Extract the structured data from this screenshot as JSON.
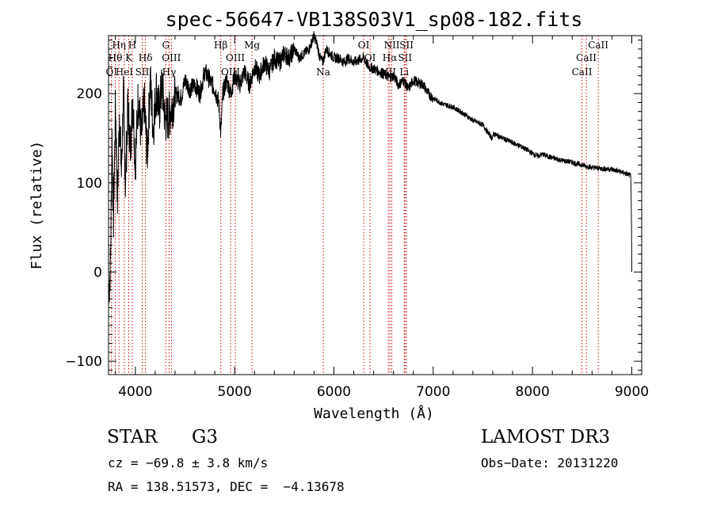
{
  "chart_data": {
    "type": "line",
    "title": "spec-56647-VB138S03V1_sp08-182.fits",
    "xlabel": "Wavelength (Å)",
    "ylabel": "Flux (relative)",
    "xlim": [
      3730,
      9100
    ],
    "ylim": [
      -115,
      265
    ],
    "x_ticks": [
      4000,
      5000,
      6000,
      7000,
      8000,
      9000
    ],
    "y_ticks": [
      -100,
      0,
      100,
      200
    ],
    "x_tick_labels": [
      "4000",
      "5000",
      "6000",
      "7000",
      "8000",
      "9000"
    ],
    "y_tick_labels": [
      "−100",
      "0",
      "100",
      "200"
    ],
    "series": [
      {
        "name": "flux",
        "x": [
          3735,
          3750,
          3765,
          3780,
          3800,
          3820,
          3840,
          3860,
          3880,
          3900,
          3925,
          3950,
          3975,
          4000,
          4030,
          4060,
          4090,
          4120,
          4150,
          4180,
          4210,
          4240,
          4270,
          4300,
          4340,
          4380,
          4420,
          4460,
          4500,
          4550,
          4600,
          4650,
          4700,
          4750,
          4800,
          4840,
          4861,
          4880,
          4920,
          4960,
          5000,
          5050,
          5100,
          5150,
          5200,
          5250,
          5300,
          5350,
          5400,
          5450,
          5500,
          5550,
          5600,
          5650,
          5700,
          5750,
          5800,
          5830,
          5860,
          5890,
          5920,
          5960,
          6000,
          6050,
          6100,
          6150,
          6200,
          6250,
          6300,
          6350,
          6400,
          6450,
          6500,
          6563,
          6600,
          6650,
          6700,
          6750,
          6800,
          6850,
          6900,
          6950,
          7000,
          7100,
          7200,
          7300,
          7400,
          7500,
          7590,
          7610,
          7700,
          7800,
          7900,
          8000,
          8050,
          8100,
          8200,
          8300,
          8400,
          8500,
          8600,
          8700,
          8800,
          8900,
          8950,
          8990,
          8998,
          9000
        ],
        "y": [
          -20,
          10,
          150,
          60,
          190,
          80,
          180,
          110,
          200,
          100,
          185,
          140,
          195,
          120,
          200,
          150,
          190,
          130,
          215,
          160,
          205,
          180,
          210,
          170,
          175,
          190,
          200,
          195,
          215,
          205,
          210,
          200,
          225,
          215,
          205,
          190,
          155,
          200,
          215,
          200,
          220,
          210,
          225,
          210,
          230,
          220,
          235,
          225,
          240,
          235,
          245,
          240,
          250,
          240,
          245,
          250,
          265,
          255,
          240,
          235,
          250,
          245,
          240,
          240,
          235,
          240,
          235,
          238,
          240,
          230,
          228,
          225,
          222,
          218,
          220,
          210,
          215,
          205,
          215,
          212,
          210,
          200,
          195,
          188,
          185,
          178,
          170,
          165,
          150,
          155,
          150,
          145,
          140,
          133,
          130,
          132,
          128,
          125,
          123,
          120,
          117,
          116,
          115,
          112,
          110,
          108,
          50,
          0
        ]
      }
    ],
    "lines": [
      {
        "name": "OI",
        "x": 3760,
        "row": 3
      },
      {
        "name": "Hθ",
        "x": 3798,
        "row": 2
      },
      {
        "name": "Hη",
        "x": 3835,
        "row": 1
      },
      {
        "name": "HeI",
        "x": 3889,
        "row": 3
      },
      {
        "name": "K",
        "x": 3934,
        "row": 2
      },
      {
        "name": "H",
        "x": 3969,
        "row": 1
      },
      {
        "name": "SII",
        "x": 4069,
        "row": 3
      },
      {
        "name": "Hδ",
        "x": 4102,
        "row": 2
      },
      {
        "name": "G",
        "x": 4307,
        "row": 1
      },
      {
        "name": "Hγ",
        "x": 4340,
        "row": 3
      },
      {
        "name": "OIII",
        "x": 4363,
        "row": 2
      },
      {
        "name": "Hβ",
        "x": 4861,
        "row": 1
      },
      {
        "name": "OIII",
        "x": 4959,
        "row": 3
      },
      {
        "name": "OIII",
        "x": 5007,
        "row": 2
      },
      {
        "name": "Mg",
        "x": 5175,
        "row": 1
      },
      {
        "name": "Na",
        "x": 5893,
        "row": 3
      },
      {
        "name": "OI",
        "x": 6300,
        "row": 1
      },
      {
        "name": "OI",
        "x": 6364,
        "row": 2
      },
      {
        "name": "NII",
        "x": 6548,
        "row": 3
      },
      {
        "name": "Hα",
        "x": 6563,
        "row": 2
      },
      {
        "name": "NII",
        "x": 6583,
        "row": 1
      },
      {
        "name": "Li",
        "x": 6708,
        "row": 3
      },
      {
        "name": "SII",
        "x": 6716,
        "row": 2
      },
      {
        "name": "SII",
        "x": 6731,
        "row": 1
      },
      {
        "name": "CaII",
        "x": 8498,
        "row": 3
      },
      {
        "name": "CaII",
        "x": 8542,
        "row": 2
      },
      {
        "name": "CaII",
        "x": 8662,
        "row": 1
      }
    ],
    "line_color": "#cc0000",
    "trace_color": "#000000"
  },
  "info": {
    "object_class": "STAR",
    "subclass": "G3",
    "survey": "LAMOST DR3",
    "cz": "cz = −69.8 ± 3.8 km/s",
    "obs_date": "Obs−Date: 20131220",
    "coords": "RA = 138.51573, DEC =  −4.13678"
  }
}
